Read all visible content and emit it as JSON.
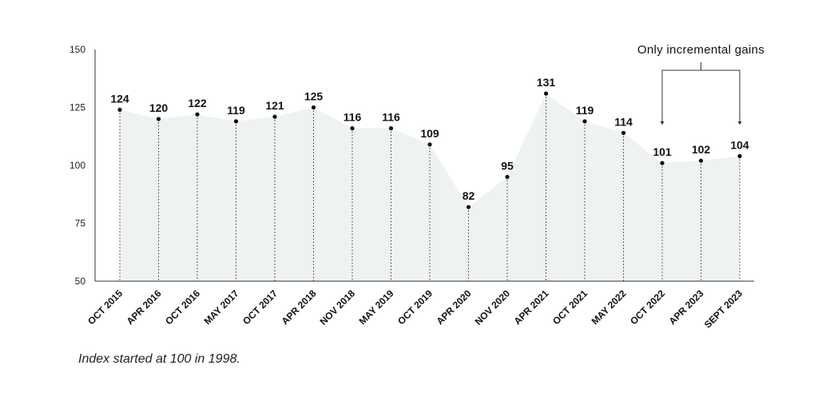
{
  "chart_data": {
    "type": "area",
    "categories": [
      "OCT 2015",
      "APR 2016",
      "OCT 2016",
      "MAY 2017",
      "OCT 2017",
      "APR 2018",
      "NOV 2018",
      "MAY 2019",
      "OCT 2019",
      "APR 2020",
      "NOV 2020",
      "APR 2021",
      "OCT 2021",
      "MAY 2022",
      "OCT 2022",
      "APR 2023",
      "SEPT 2023"
    ],
    "values": [
      124,
      120,
      122,
      119,
      121,
      125,
      116,
      116,
      109,
      82,
      95,
      131,
      119,
      114,
      101,
      102,
      104
    ],
    "ylim": [
      50,
      150
    ],
    "yticks": [
      50,
      75,
      100,
      125,
      150
    ],
    "title": "",
    "xlabel": "",
    "ylabel": "",
    "grid": false,
    "fill_color": "#eef3ef",
    "annotation": {
      "text": "Only incremental gains",
      "from_category": "OCT 2022",
      "to_category": "SEPT 2023"
    }
  },
  "footnote": "Index started at 100 in 1998."
}
